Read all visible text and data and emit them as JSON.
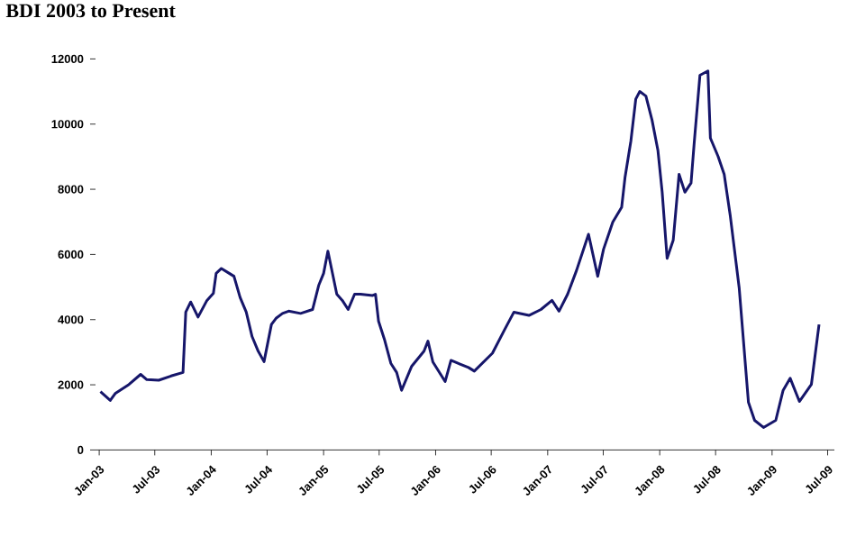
{
  "chart_data": {
    "type": "line",
    "title": "BDI 2003 to Present",
    "x": [
      "2003-01-05",
      "2003-02-06",
      "2003-02-23",
      "2003-04-08",
      "2003-05-16",
      "2003-06-05",
      "2003-07-14",
      "2003-08-23",
      "2003-10-01",
      "2003-10-10",
      "2003-10-26",
      "2003-11-19",
      "2003-12-18",
      "2004-01-08",
      "2004-01-17",
      "2004-02-03",
      "2004-03-15",
      "2004-04-04",
      "2004-04-24",
      "2004-05-13",
      "2004-06-02",
      "2004-06-21",
      "2004-07-15",
      "2004-07-30",
      "2004-08-20",
      "2004-09-09",
      "2004-10-18",
      "2004-11-26",
      "2004-12-16",
      "2005-01-01",
      "2005-01-15",
      "2005-02-13",
      "2005-03-03",
      "2005-03-22",
      "2005-04-12",
      "2005-05-01",
      "2005-06-10",
      "2005-06-19",
      "2005-06-29",
      "2005-07-18",
      "2005-08-08",
      "2005-08-27",
      "2005-09-12",
      "2005-10-15",
      "2005-11-24",
      "2005-12-07",
      "2005-12-23",
      "2006-02-01",
      "2006-02-20",
      "2006-04-18",
      "2006-05-07",
      "2006-07-05",
      "2006-08-14",
      "2006-09-13",
      "2006-11-01",
      "2006-12-10",
      "2007-01-15",
      "2007-02-07",
      "2007-03-07",
      "2007-04-05",
      "2007-05-14",
      "2007-06-13",
      "2007-07-02",
      "2007-08-01",
      "2007-08-30",
      "2007-09-10",
      "2007-09-29",
      "2007-10-15",
      "2007-10-28",
      "2007-11-17",
      "2007-12-07",
      "2007-12-26",
      "2008-01-09",
      "2008-01-25",
      "2008-02-14",
      "2008-03-04",
      "2008-03-23",
      "2008-04-12",
      "2008-04-22",
      "2008-05-11",
      "2008-06-06",
      "2008-06-14",
      "2008-07-09",
      "2008-07-29",
      "2008-08-18",
      "2008-09-16",
      "2008-10-16",
      "2008-11-05",
      "2008-12-04",
      "2009-01-13",
      "2009-02-06",
      "2009-03-01",
      "2009-03-31",
      "2009-05-09",
      "2009-05-19",
      "2009-06-03"
    ],
    "series": [
      {
        "color": "#16166a",
        "values": [
          1790,
          1520,
          1740,
          2010,
          2320,
          2160,
          2140,
          2270,
          2380,
          4230,
          4540,
          4080,
          4590,
          4810,
          5420,
          5570,
          5330,
          4680,
          4230,
          3480,
          3030,
          2710,
          3850,
          4040,
          4190,
          4260,
          4190,
          4310,
          5050,
          5420,
          6100,
          4780,
          4590,
          4310,
          4780,
          4780,
          4740,
          4780,
          3950,
          3400,
          2660,
          2380,
          1830,
          2570,
          3030,
          3340,
          2700,
          2100,
          2750,
          2530,
          2420,
          2970,
          3700,
          4230,
          4130,
          4310,
          4590,
          4260,
          4780,
          5510,
          6620,
          5330,
          6160,
          6990,
          7450,
          8370,
          9480,
          10770,
          11000,
          10860,
          10120,
          9200,
          7910,
          5880,
          6440,
          8460,
          7910,
          8190,
          9390,
          11500,
          11630,
          9570,
          9010,
          8460,
          7170,
          4960,
          1460,
          910,
          690,
          910,
          1830,
          2200,
          1490,
          2010,
          2750,
          3850
        ]
      }
    ],
    "xlim": [
      "2002-12-20",
      "2009-07-23"
    ],
    "xticks": [
      {
        "value": "2003-01-01",
        "label": "Jan-03"
      },
      {
        "value": "2003-07-01",
        "label": "Jul-03"
      },
      {
        "value": "2004-01-01",
        "label": "Jan-04"
      },
      {
        "value": "2004-07-01",
        "label": "Jul-04"
      },
      {
        "value": "2005-01-01",
        "label": "Jan-05"
      },
      {
        "value": "2005-07-01",
        "label": "Jul-05"
      },
      {
        "value": "2006-01-01",
        "label": "Jan-06"
      },
      {
        "value": "2006-07-01",
        "label": "Jul-06"
      },
      {
        "value": "2007-01-01",
        "label": "Jan-07"
      },
      {
        "value": "2007-07-01",
        "label": "Jul-07"
      },
      {
        "value": "2008-01-01",
        "label": "Jan-08"
      },
      {
        "value": "2008-07-01",
        "label": "Jul-08"
      },
      {
        "value": "2009-01-01",
        "label": "Jan-09"
      },
      {
        "value": "2009-07-01",
        "label": "Jul-09"
      }
    ],
    "ylim": [
      0,
      12000
    ],
    "yticks": [
      0,
      2000,
      4000,
      6000,
      8000,
      10000,
      12000
    ],
    "marker": "none",
    "line_style": "solid"
  }
}
